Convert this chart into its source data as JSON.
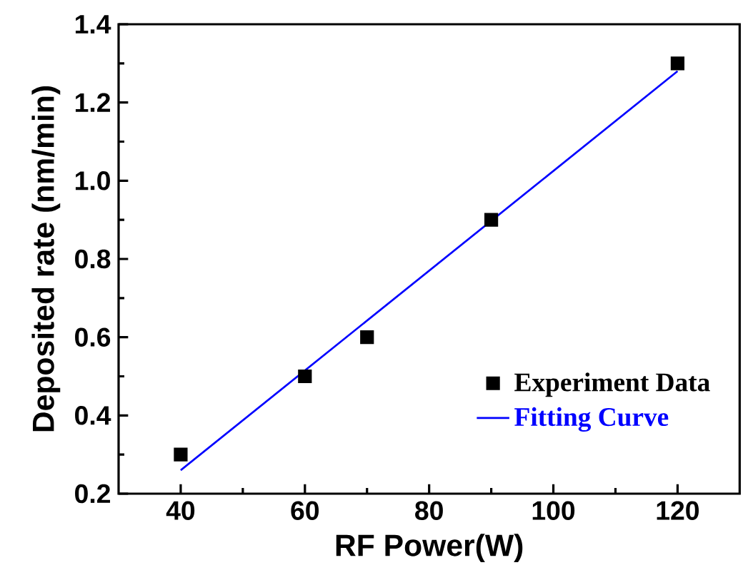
{
  "chart_data": {
    "type": "scatter",
    "xlabel": "RF Power(W)",
    "ylabel": "Deposited rate (nm/min)",
    "xlim": [
      30,
      130
    ],
    "xticks": [
      40,
      60,
      80,
      100,
      120
    ],
    "ylim": [
      0.2,
      1.4
    ],
    "yticks": [
      0.2,
      0.4,
      0.6,
      0.8,
      {
        "value": 1.0,
        "label": "1.0"
      },
      1.2,
      1.4
    ],
    "legend": "bottom right",
    "grid": false,
    "series": [
      {
        "name": "Experiment Data",
        "marker": "square",
        "color": "#000000",
        "x": [
          40,
          60,
          70,
          90,
          120
        ],
        "values": [
          0.3,
          0.5,
          0.6,
          0.9,
          1.3
        ]
      },
      {
        "name": "Fitting Curve",
        "type": "line",
        "marker": "none",
        "line_style": "solid",
        "color": "#0000ff",
        "x": [
          40,
          120
        ],
        "values": [
          0.26,
          1.28
        ]
      }
    ]
  }
}
